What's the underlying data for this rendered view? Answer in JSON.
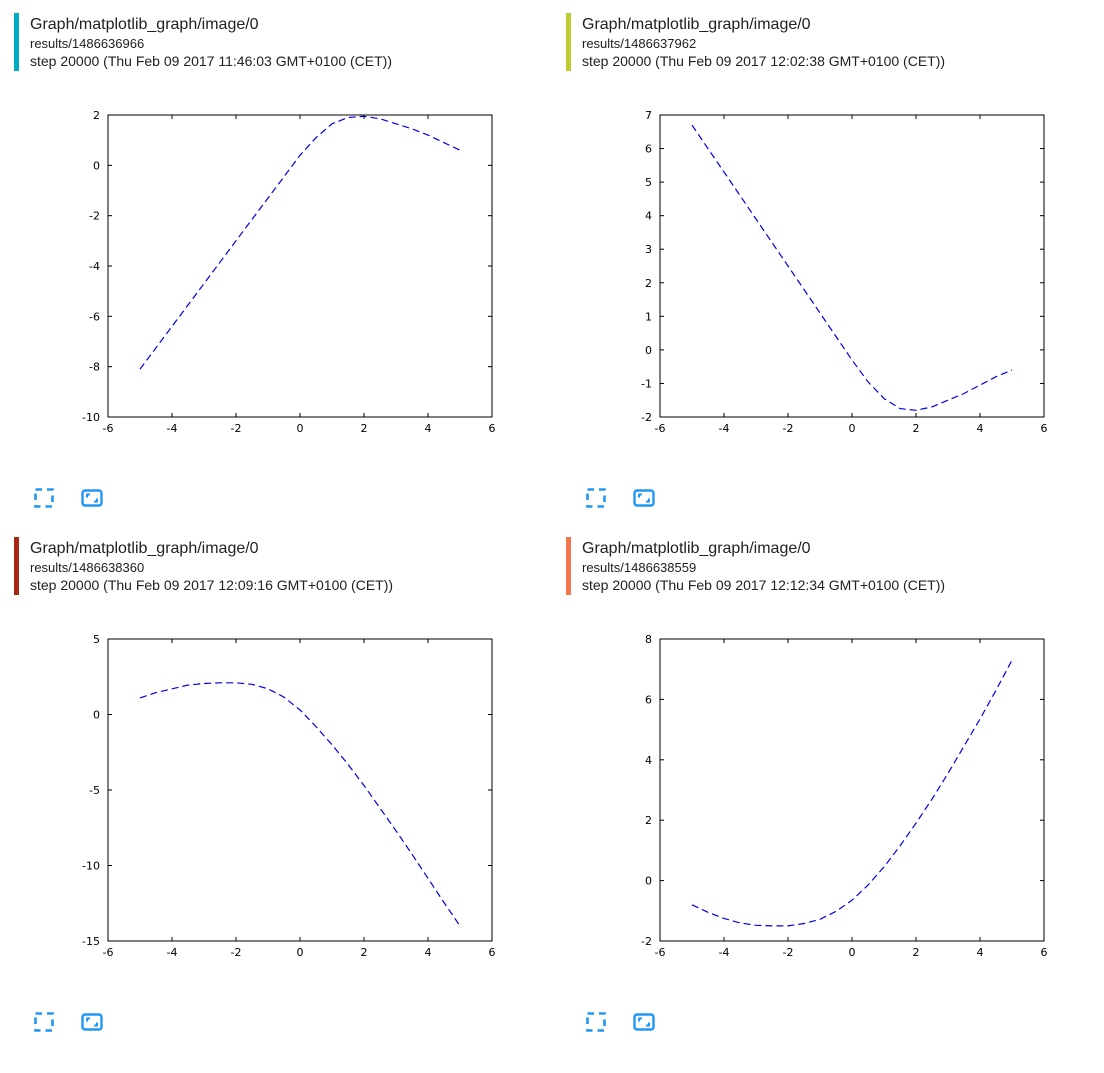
{
  "accent": {
    "icon_blue": "#2196f3",
    "line_color": "#0000e6",
    "axis_color": "#000000"
  },
  "panels": [
    {
      "run_color": "#00acc1",
      "title": "Graph/matplotlib_graph/image/0",
      "run": "results/1486636966",
      "step": "step 20000 (Thu Feb 09 2017 11:46:03 GMT+0100 (CET))",
      "chart_data": {
        "type": "line",
        "xlim": [
          -6,
          6
        ],
        "ylim": [
          -10,
          2
        ],
        "xticks": [
          -6,
          -4,
          -2,
          0,
          2,
          4,
          6
        ],
        "yticks": [
          -10,
          -8,
          -6,
          -4,
          -2,
          0,
          2
        ],
        "grid": false,
        "points": [
          [
            -5,
            -8.1
          ],
          [
            -4.5,
            -7.25
          ],
          [
            -4,
            -6.4
          ],
          [
            -3.5,
            -5.55
          ],
          [
            -3,
            -4.7
          ],
          [
            -2.5,
            -3.85
          ],
          [
            -2,
            -3.0
          ],
          [
            -1.5,
            -2.15
          ],
          [
            -1,
            -1.3
          ],
          [
            -0.5,
            -0.45
          ],
          [
            0,
            0.4
          ],
          [
            0.5,
            1.1
          ],
          [
            1,
            1.65
          ],
          [
            1.5,
            1.9
          ],
          [
            2,
            1.95
          ],
          [
            2.5,
            1.85
          ],
          [
            3,
            1.65
          ],
          [
            3.5,
            1.45
          ],
          [
            4,
            1.2
          ],
          [
            4.5,
            0.9
          ],
          [
            5,
            0.6
          ]
        ]
      }
    },
    {
      "run_color": "#c0ca33",
      "title": "Graph/matplotlib_graph/image/0",
      "run": "results/1486637962",
      "step": "step 20000 (Thu Feb 09 2017 12:02:38 GMT+0100 (CET))",
      "chart_data": {
        "type": "line",
        "xlim": [
          -6,
          6
        ],
        "ylim": [
          -2,
          7
        ],
        "xticks": [
          -6,
          -4,
          -2,
          0,
          2,
          4,
          6
        ],
        "yticks": [
          -2,
          -1,
          0,
          1,
          2,
          3,
          4,
          5,
          6,
          7
        ],
        "grid": false,
        "points": [
          [
            -5,
            6.7
          ],
          [
            -4.5,
            6.0
          ],
          [
            -4,
            5.3
          ],
          [
            -3.5,
            4.6
          ],
          [
            -3,
            3.9
          ],
          [
            -2.5,
            3.2
          ],
          [
            -2,
            2.5
          ],
          [
            -1.5,
            1.8
          ],
          [
            -1,
            1.1
          ],
          [
            -0.5,
            0.4
          ],
          [
            0,
            -0.3
          ],
          [
            0.5,
            -0.95
          ],
          [
            1,
            -1.45
          ],
          [
            1.5,
            -1.75
          ],
          [
            2,
            -1.8
          ],
          [
            2.5,
            -1.7
          ],
          [
            3,
            -1.5
          ],
          [
            3.5,
            -1.3
          ],
          [
            4,
            -1.05
          ],
          [
            4.5,
            -0.8
          ],
          [
            5,
            -0.6
          ]
        ]
      }
    },
    {
      "run_color": "#a52714",
      "title": "Graph/matplotlib_graph/image/0",
      "run": "results/1486638360",
      "step": "step 20000 (Thu Feb 09 2017 12:09:16 GMT+0100 (CET))",
      "chart_data": {
        "type": "line",
        "xlim": [
          -6,
          6
        ],
        "ylim": [
          -15,
          5
        ],
        "xticks": [
          -6,
          -4,
          -2,
          0,
          2,
          4,
          6
        ],
        "yticks": [
          -15,
          -10,
          -5,
          0,
          5
        ],
        "grid": false,
        "points": [
          [
            -5,
            1.1
          ],
          [
            -4.5,
            1.45
          ],
          [
            -4,
            1.7
          ],
          [
            -3.5,
            1.95
          ],
          [
            -3,
            2.05
          ],
          [
            -2.5,
            2.1
          ],
          [
            -2,
            2.1
          ],
          [
            -1.5,
            2.0
          ],
          [
            -1,
            1.7
          ],
          [
            -0.5,
            1.15
          ],
          [
            0,
            0.3
          ],
          [
            0.5,
            -0.8
          ],
          [
            1,
            -2.0
          ],
          [
            1.5,
            -3.3
          ],
          [
            2,
            -4.7
          ],
          [
            2.5,
            -6.2
          ],
          [
            3,
            -7.7
          ],
          [
            3.5,
            -9.25
          ],
          [
            4,
            -10.85
          ],
          [
            4.5,
            -12.45
          ],
          [
            5,
            -14.0
          ]
        ]
      }
    },
    {
      "run_color": "#f4764a",
      "title": "Graph/matplotlib_graph/image/0",
      "run": "results/1486638559",
      "step": "step 20000 (Thu Feb 09 2017 12:12:34 GMT+0100 (CET))",
      "chart_data": {
        "type": "line",
        "xlim": [
          -6,
          6
        ],
        "ylim": [
          -2,
          8
        ],
        "xticks": [
          -6,
          -4,
          -2,
          0,
          2,
          4,
          6
        ],
        "yticks": [
          -2,
          0,
          2,
          4,
          6,
          8
        ],
        "grid": false,
        "points": [
          [
            -5,
            -0.8
          ],
          [
            -4.5,
            -1.05
          ],
          [
            -4,
            -1.25
          ],
          [
            -3.5,
            -1.4
          ],
          [
            -3,
            -1.48
          ],
          [
            -2.5,
            -1.5
          ],
          [
            -2,
            -1.5
          ],
          [
            -1.5,
            -1.42
          ],
          [
            -1,
            -1.28
          ],
          [
            -0.5,
            -1.02
          ],
          [
            0,
            -0.65
          ],
          [
            0.5,
            -0.15
          ],
          [
            1,
            0.45
          ],
          [
            1.5,
            1.15
          ],
          [
            2,
            1.9
          ],
          [
            2.5,
            2.7
          ],
          [
            3,
            3.55
          ],
          [
            3.5,
            4.45
          ],
          [
            4,
            5.35
          ],
          [
            4.5,
            6.3
          ],
          [
            5,
            7.3
          ]
        ]
      }
    }
  ]
}
